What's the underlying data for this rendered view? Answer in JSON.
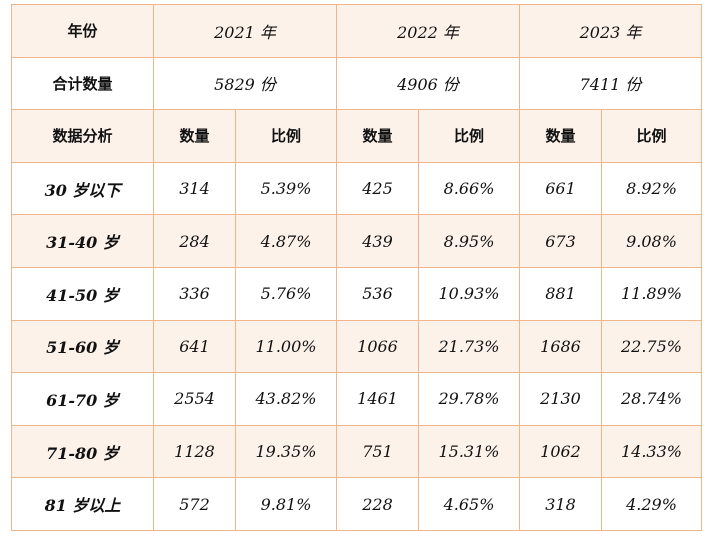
{
  "header": {
    "year_label": "年份",
    "years": [
      "2021 年",
      "2022 年",
      "2023 年"
    ]
  },
  "totals": {
    "label": "合计数量",
    "values": [
      "5829 份",
      "4906 份",
      "7411 份"
    ]
  },
  "subheader": {
    "label": "数据分析",
    "count_label": "数量",
    "ratio_label": "比例"
  },
  "rows": [
    {
      "group": "30 岁以下",
      "cells": [
        "314",
        "5.39%",
        "425",
        "8.66%",
        "661",
        "8.92%"
      ]
    },
    {
      "group": "31-40 岁",
      "cells": [
        "284",
        "4.87%",
        "439",
        "8.95%",
        "673",
        "9.08%"
      ]
    },
    {
      "group": "41-50 岁",
      "cells": [
        "336",
        "5.76%",
        "536",
        "10.93%",
        "881",
        "11.89%"
      ]
    },
    {
      "group": "51-60 岁",
      "cells": [
        "641",
        "11.00%",
        "1066",
        "21.73%",
        "1686",
        "22.75%"
      ]
    },
    {
      "group": "61-70 岁",
      "cells": [
        "2554",
        "43.82%",
        "1461",
        "29.78%",
        "2130",
        "28.74%"
      ]
    },
    {
      "group": "71-80 岁",
      "cells": [
        "1128",
        "19.35%",
        "751",
        "15.31%",
        "1062",
        "14.33%"
      ]
    },
    {
      "group": "81 岁以上",
      "cells": [
        "572",
        "9.81%",
        "228",
        "4.65%",
        "318",
        "4.29%"
      ]
    }
  ],
  "colors": {
    "border": "#efb58b",
    "shaded_row": "#fdf2ea",
    "plain_row": "#ffffff",
    "text": "#111111"
  }
}
